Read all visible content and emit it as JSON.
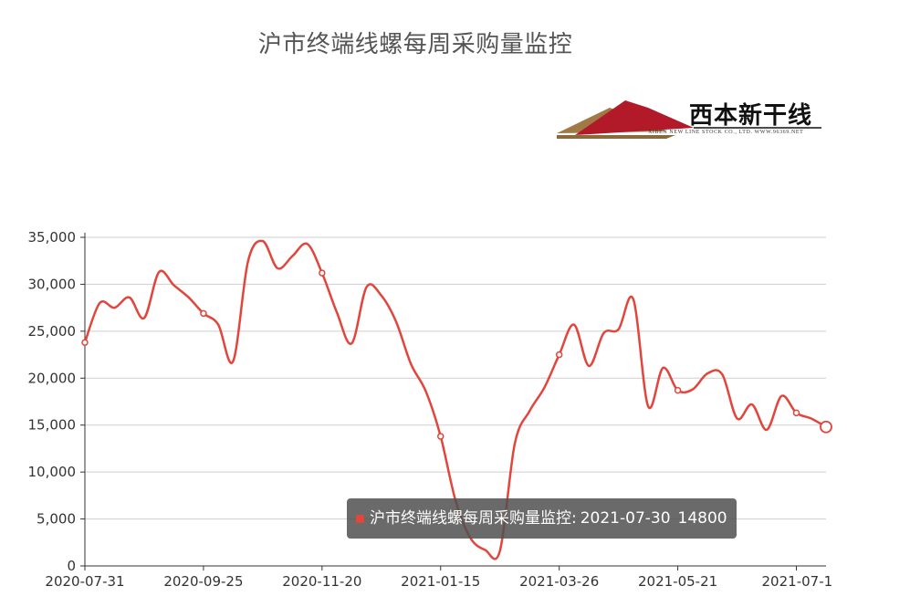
{
  "chart_data": {
    "type": "line",
    "title": "沪市终端线螺每周采购量监控",
    "series": [
      {
        "name": "沪市终端线螺每周采购量监控",
        "color": "#e2453b",
        "values": [
          23800,
          28000,
          27500,
          28600,
          26400,
          31300,
          29900,
          28600,
          26900,
          25700,
          21800,
          32400,
          34600,
          31700,
          33000,
          34300,
          31200,
          27000,
          23700,
          29700,
          28800,
          26000,
          21500,
          18600,
          13800,
          7000,
          3000,
          1700,
          1600,
          13000,
          16500,
          19000,
          22500,
          25700,
          21300,
          24800,
          25200,
          28400,
          17000,
          21100,
          18700,
          18800,
          20500,
          20400,
          15700,
          17200,
          14500,
          18100,
          16300,
          15700,
          14800
        ]
      }
    ],
    "x_tick_labels": [
      "2020-07-31",
      "2020-09-25",
      "2020-11-20",
      "2021-01-15",
      "2021-03-26",
      "2021-05-21",
      "2021-07-1"
    ],
    "x_tick_index": [
      0,
      8,
      16,
      24,
      32,
      40,
      48
    ],
    "y_tick_labels": [
      "0",
      "5,000",
      "10,000",
      "15,000",
      "20,000",
      "25,000",
      "30,000",
      "35,000"
    ],
    "ylim": [
      0,
      35000
    ],
    "grid": true,
    "tooltip": {
      "label": "沪市终端线螺每周采购量监控:",
      "date": "2021-07-30",
      "value": "14800"
    },
    "logo": {
      "text": "西本新干线",
      "subtext": "XIBEN NEW LINE STOCK CO., LTD.   WWW.96369.NET"
    }
  }
}
